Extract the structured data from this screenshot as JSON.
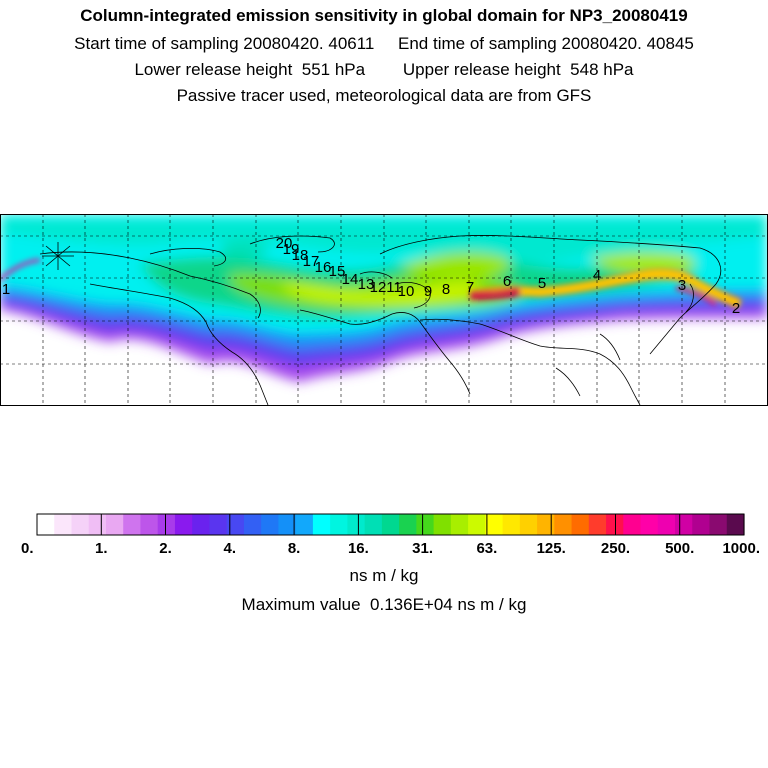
{
  "header": {
    "title": "Column-integrated emission sensitivity in global domain for NP3_20080419",
    "sampling": {
      "start_label": "Start time of sampling",
      "start_value": "20080420. 40611",
      "end_label": "End time of sampling",
      "end_value": "20080420. 40845"
    },
    "release": {
      "lower_label": "Lower release height",
      "lower_value": "551 hPa",
      "upper_label": "Upper release height",
      "upper_value": "548 hPa"
    },
    "note": "Passive tracer used, meteorological data are from GFS"
  },
  "colorbar": {
    "colors": [
      "#ffffff",
      "#fbe6fb",
      "#f5d2f8",
      "#f0bef5",
      "#e9a8f2",
      "#cf74ee",
      "#bd55ea",
      "#a83bea",
      "#8a1aee",
      "#6a22ee",
      "#5a35ef",
      "#4848f2",
      "#3360f4",
      "#1f78f6",
      "#1490f8",
      "#12a8fb",
      "#00ffff",
      "#00f5e0",
      "#00eacc",
      "#00dfb5",
      "#00d890",
      "#1ad250",
      "#45d81c",
      "#80e000",
      "#a8ee00",
      "#ccfa00",
      "#ffff00",
      "#ffe800",
      "#ffd000",
      "#ffb400",
      "#ff9000",
      "#ff6c00",
      "#ff3c2c",
      "#ff104c",
      "#ff0090",
      "#ff00a8",
      "#ee00b0",
      "#d000a4",
      "#b00090",
      "#8a0a70",
      "#5a0a4e"
    ],
    "tick_labels": [
      "0.",
      "1.",
      "2.",
      "4.",
      "8.",
      "16.",
      "31.",
      "63.",
      "125.",
      "250.",
      "500.",
      "1000."
    ],
    "units": "ns m / kg",
    "max_label": "Maximum value",
    "max_value": "0.136E+04 ns m / kg"
  },
  "map": {
    "trajectory_labels": [
      "1",
      "2",
      "3",
      "4",
      "5",
      "6",
      "7",
      "8",
      "9",
      "10",
      "11",
      "12",
      "13",
      "14",
      "15",
      "16",
      "17",
      "18",
      "19",
      "20"
    ]
  }
}
